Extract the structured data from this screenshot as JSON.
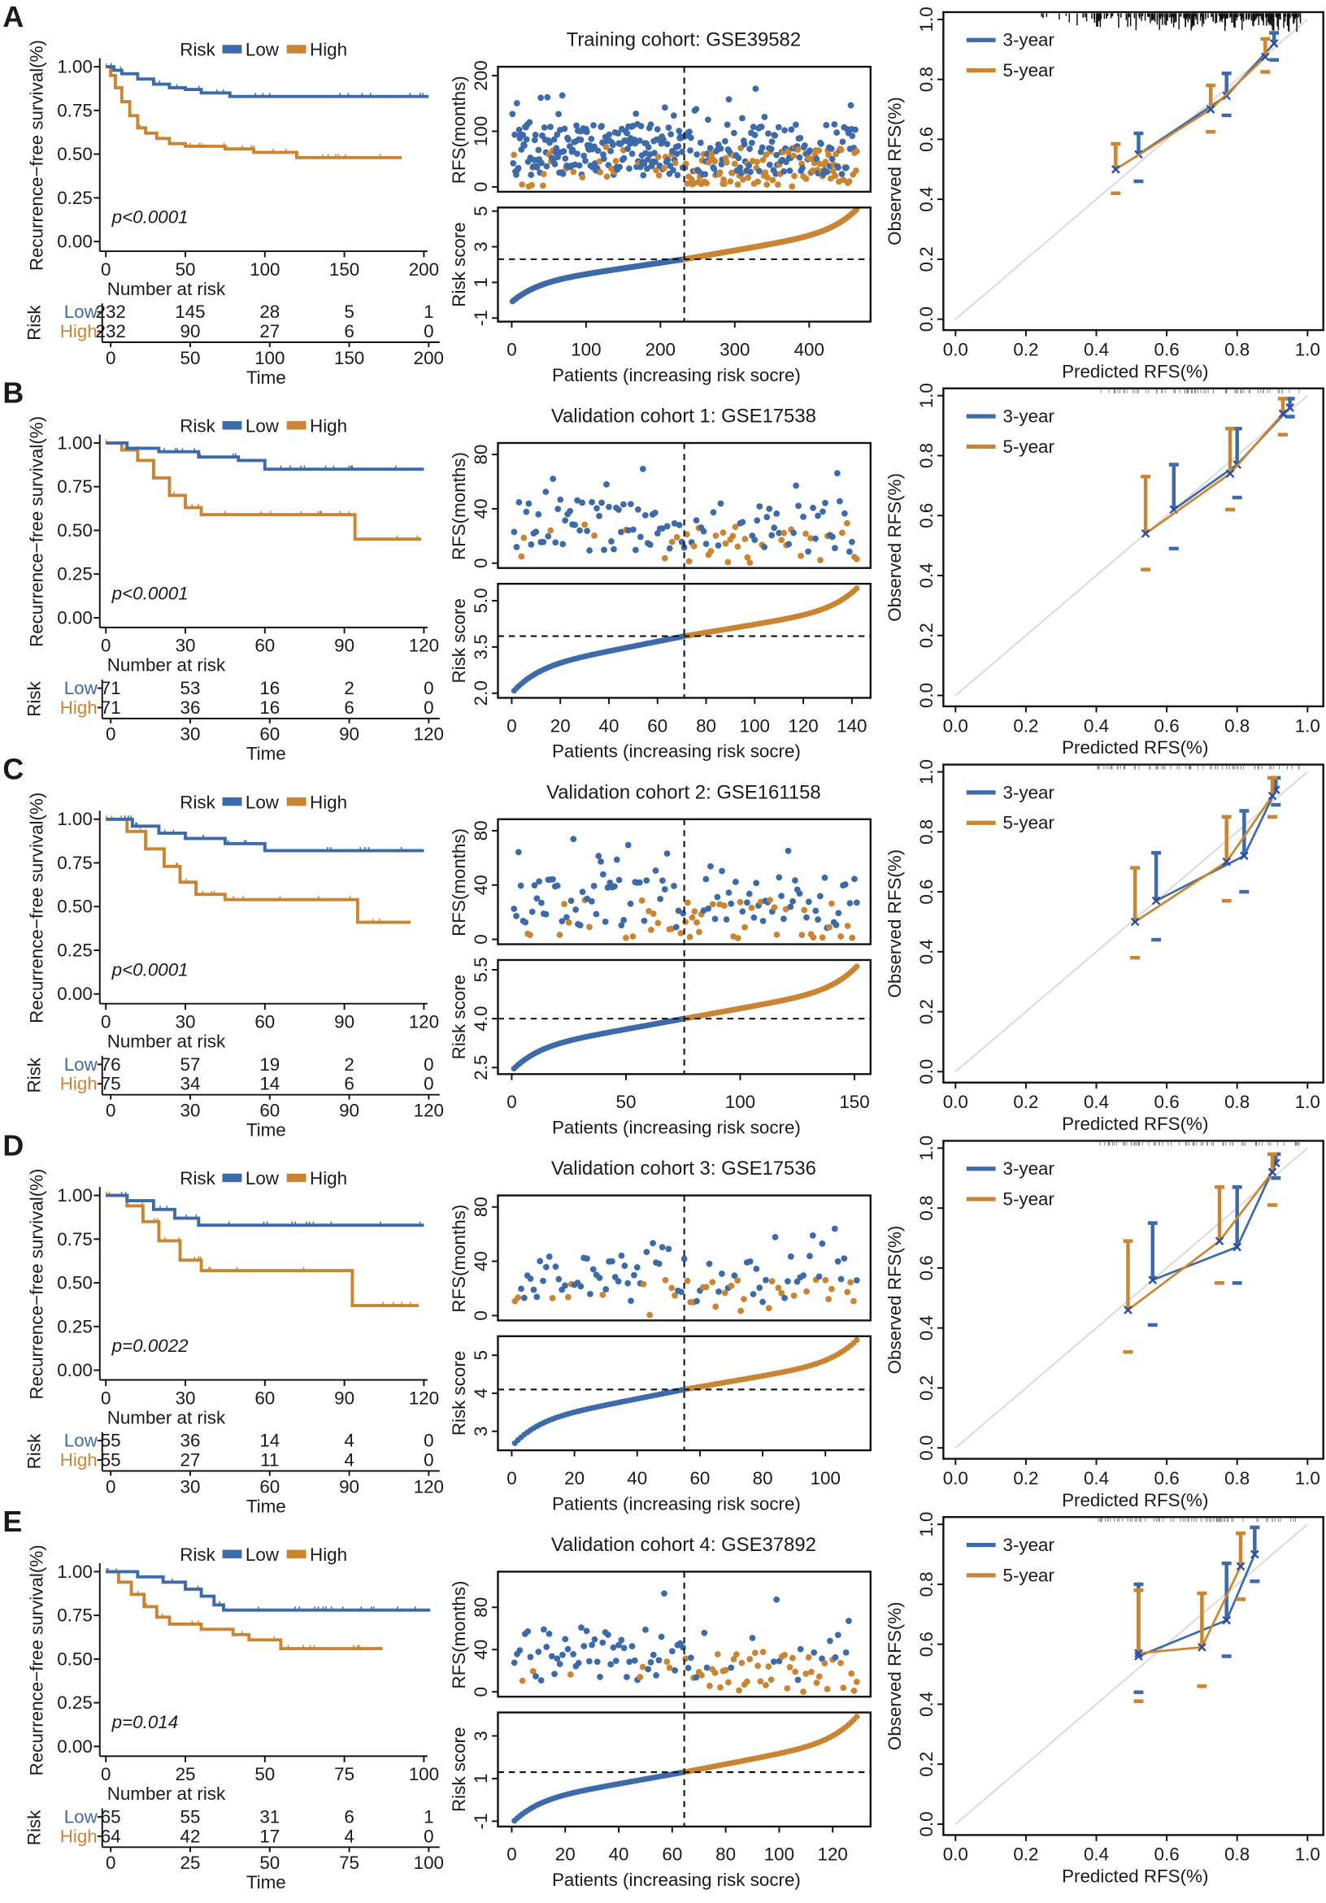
{
  "colors": {
    "low": "#3d6aa8",
    "high": "#c98532",
    "mark": "#2b4ea0",
    "ideal": "#d9d9d9"
  },
  "common": {
    "km_ylabel": "Recurrence−free survival(%)",
    "km_yticks": [
      "0.00",
      "0.25",
      "0.50",
      "0.75",
      "1.00"
    ],
    "legend_title": "Risk",
    "legend_low": "Low",
    "legend_high": "High",
    "risk_table_title": "Number at risk",
    "risk_table_ylabel": "Risk",
    "time_label": "Time",
    "rfs_ylabel": "RFS(months)",
    "score_ylabel": "Risk score",
    "patients_xlabel": "Patients (increasing risk socre)",
    "cal_xlabel": "Predicted RFS(%)",
    "cal_ylabel": "Observed RFS(%)",
    "cal_ticks": [
      "0.0",
      "0.2",
      "0.4",
      "0.6",
      "0.8",
      "1.0"
    ],
    "cal_legend": [
      "3-year",
      "5-year"
    ]
  },
  "chart_data": [
    {
      "panel": "A",
      "title": "Training cohort: GSE39582",
      "km": {
        "type": "line",
        "xmax": 200,
        "xticks": [
          0,
          50,
          100,
          150,
          200
        ],
        "p_value": "p<0.0001",
        "low": {
          "points": [
            [
              0,
              1
            ],
            [
              5,
              0.98
            ],
            [
              10,
              0.96
            ],
            [
              20,
              0.93
            ],
            [
              30,
              0.9
            ],
            [
              40,
              0.88
            ],
            [
              50,
              0.87
            ],
            [
              60,
              0.85
            ],
            [
              78,
              0.83
            ]
          ],
          "end": 203
        },
        "high": {
          "points": [
            [
              0,
              1
            ],
            [
              3,
              0.95
            ],
            [
              6,
              0.88
            ],
            [
              10,
              0.8
            ],
            [
              15,
              0.72
            ],
            [
              20,
              0.65
            ],
            [
              25,
              0.62
            ],
            [
              32,
              0.59
            ],
            [
              40,
              0.56
            ],
            [
              50,
              0.545
            ],
            [
              75,
              0.53
            ],
            [
              93,
              0.51
            ],
            [
              120,
              0.48
            ]
          ],
          "end": 186
        },
        "at_risk": {
          "low": [
            "232",
            "145",
            "28",
            "5",
            "1"
          ],
          "high": [
            "232",
            "90",
            "27",
            "6",
            "0"
          ]
        }
      },
      "risk": {
        "type": "scatter",
        "n": 464,
        "cutoff": 232,
        "xticks": [
          0,
          100,
          200,
          300,
          400
        ],
        "rfs_ylim": [
          0,
          205
        ],
        "rfs_yticks": [
          0,
          100,
          200
        ],
        "score_ylim": [
          -1.2,
          5.2
        ],
        "score_yticks": [
          -1,
          1,
          3,
          5
        ],
        "score_cut": 2.3,
        "score_range": [
          -0.1,
          5.1
        ]
      },
      "calibration": {
        "type": "line",
        "xlim": [
          0,
          1
        ],
        "ylim": [
          0,
          1
        ],
        "series": [
          {
            "name": "3-year",
            "points": [
              [
                0.52,
                0.55,
                0.46,
                0.62
              ],
              [
                0.77,
                0.745,
                0.68,
                0.82
              ],
              [
                0.905,
                0.92,
                0.865,
                0.955
              ]
            ]
          },
          {
            "name": "5-year",
            "points": [
              [
                0.455,
                0.5,
                0.42,
                0.585
              ],
              [
                0.725,
                0.7,
                0.625,
                0.78
              ],
              [
                0.88,
                0.875,
                0.825,
                0.935
              ]
            ]
          }
        ]
      }
    },
    {
      "panel": "B",
      "title": "Validation cohort 1: GSE17538",
      "km": {
        "type": "line",
        "xmax": 120,
        "xticks": [
          0,
          30,
          60,
          90,
          120
        ],
        "p_value": "p<0.0001",
        "low": {
          "points": [
            [
              0,
              1
            ],
            [
              8,
              0.97
            ],
            [
              20,
              0.95
            ],
            [
              35,
              0.92
            ],
            [
              50,
              0.9
            ],
            [
              60,
              0.85
            ]
          ],
          "end": 120
        },
        "high": {
          "points": [
            [
              0,
              1
            ],
            [
              6,
              0.96
            ],
            [
              12,
              0.9
            ],
            [
              18,
              0.8
            ],
            [
              24,
              0.7
            ],
            [
              30,
              0.63
            ],
            [
              36,
              0.59
            ],
            [
              94,
              0.45
            ]
          ],
          "end": 119
        },
        "at_risk": {
          "low": [
            "71",
            "53",
            "16",
            "2",
            "0"
          ],
          "high": [
            "71",
            "36",
            "16",
            "6",
            "0"
          ]
        }
      },
      "risk": {
        "type": "scatter",
        "n": 142,
        "cutoff": 71,
        "xticks": [
          0,
          20,
          40,
          60,
          80,
          100,
          120,
          140
        ],
        "rfs_ylim": [
          0,
          84
        ],
        "rfs_yticks": [
          0,
          40,
          80
        ],
        "score_ylim": [
          1.85,
          5.55
        ],
        "score_yticks": [
          2.0,
          3.5,
          5.0
        ],
        "score_cut": 3.85,
        "score_range": [
          2.0,
          5.4
        ]
      },
      "calibration": {
        "type": "line",
        "xlim": [
          0,
          1
        ],
        "ylim": [
          0,
          1
        ],
        "series": [
          {
            "name": "3-year",
            "points": [
              [
                0.62,
                0.62,
                0.49,
                0.77
              ],
              [
                0.8,
                0.77,
                0.66,
                0.89
              ],
              [
                0.95,
                0.96,
                0.93,
                0.99
              ]
            ]
          },
          {
            "name": "5-year",
            "points": [
              [
                0.54,
                0.54,
                0.42,
                0.73
              ],
              [
                0.78,
                0.74,
                0.62,
                0.89
              ],
              [
                0.93,
                0.94,
                0.87,
                0.99
              ]
            ]
          }
        ]
      }
    },
    {
      "panel": "C",
      "title": "Validation cohort 2: GSE161158",
      "km": {
        "type": "line",
        "xmax": 120,
        "xticks": [
          0,
          30,
          60,
          90,
          120
        ],
        "p_value": "p<0.0001",
        "low": {
          "points": [
            [
              0,
              1
            ],
            [
              10,
              0.96
            ],
            [
              20,
              0.92
            ],
            [
              30,
              0.89
            ],
            [
              45,
              0.86
            ],
            [
              60,
              0.82
            ]
          ],
          "end": 120
        },
        "high": {
          "points": [
            [
              0,
              1
            ],
            [
              8,
              0.93
            ],
            [
              15,
              0.83
            ],
            [
              22,
              0.73
            ],
            [
              28,
              0.64
            ],
            [
              34,
              0.57
            ],
            [
              45,
              0.54
            ],
            [
              95,
              0.41
            ]
          ],
          "end": 115
        },
        "at_risk": {
          "low": [
            "76",
            "57",
            "19",
            "2",
            "0"
          ],
          "high": [
            "75",
            "34",
            "14",
            "6",
            "0"
          ]
        }
      },
      "risk": {
        "type": "scatter",
        "n": 151,
        "cutoff": 75.5,
        "xticks": [
          0,
          50,
          100,
          150
        ],
        "rfs_ylim": [
          0,
          84
        ],
        "rfs_yticks": [
          0,
          40,
          80
        ],
        "score_ylim": [
          2.3,
          5.8
        ],
        "score_yticks": [
          2.5,
          4.0,
          5.5
        ],
        "score_cut": 4.0,
        "score_range": [
          2.4,
          5.6
        ]
      },
      "calibration": {
        "type": "line",
        "xlim": [
          0,
          1
        ],
        "ylim": [
          0,
          1
        ],
        "series": [
          {
            "name": "3-year",
            "points": [
              [
                0.57,
                0.57,
                0.44,
                0.73
              ],
              [
                0.82,
                0.72,
                0.6,
                0.87
              ],
              [
                0.91,
                0.94,
                0.89,
                0.98
              ]
            ]
          },
          {
            "name": "5-year",
            "points": [
              [
                0.51,
                0.5,
                0.38,
                0.68
              ],
              [
                0.77,
                0.7,
                0.57,
                0.85
              ],
              [
                0.9,
                0.92,
                0.85,
                0.98
              ]
            ]
          }
        ]
      }
    },
    {
      "panel": "D",
      "title": "Validation cohort 3: GSE17536",
      "km": {
        "type": "line",
        "xmax": 120,
        "xticks": [
          0,
          30,
          60,
          90,
          120
        ],
        "p_value": "p=0.0022",
        "low": {
          "points": [
            [
              0,
              1
            ],
            [
              8,
              0.97
            ],
            [
              18,
              0.92
            ],
            [
              26,
              0.87
            ],
            [
              35,
              0.83
            ]
          ],
          "end": 120
        },
        "high": {
          "points": [
            [
              0,
              1
            ],
            [
              8,
              0.94
            ],
            [
              14,
              0.85
            ],
            [
              20,
              0.74
            ],
            [
              28,
              0.63
            ],
            [
              36,
              0.57
            ],
            [
              93,
              0.37
            ]
          ],
          "end": 118
        },
        "at_risk": {
          "low": [
            "55",
            "36",
            "14",
            "4",
            "0"
          ],
          "high": [
            "55",
            "27",
            "11",
            "4",
            "0"
          ]
        }
      },
      "risk": {
        "type": "scatter",
        "n": 110,
        "cutoff": 55,
        "xticks": [
          0,
          20,
          40,
          60,
          80,
          100
        ],
        "rfs_ylim": [
          0,
          84
        ],
        "rfs_yticks": [
          0,
          40,
          80
        ],
        "score_ylim": [
          2.5,
          5.5
        ],
        "score_yticks": [
          3.0,
          4.0,
          5.0
        ],
        "score_cut": 4.1,
        "score_range": [
          2.6,
          5.4
        ]
      },
      "calibration": {
        "type": "line",
        "xlim": [
          0,
          1
        ],
        "ylim": [
          0,
          1
        ],
        "series": [
          {
            "name": "3-year",
            "points": [
              [
                0.56,
                0.56,
                0.41,
                0.75
              ],
              [
                0.8,
                0.67,
                0.55,
                0.87
              ],
              [
                0.91,
                0.95,
                0.9,
                0.98
              ]
            ]
          },
          {
            "name": "5-year",
            "points": [
              [
                0.49,
                0.46,
                0.32,
                0.69
              ],
              [
                0.75,
                0.69,
                0.55,
                0.87
              ],
              [
                0.9,
                0.92,
                0.81,
                0.98
              ]
            ]
          }
        ]
      }
    },
    {
      "panel": "E",
      "title": "Validation cohort 4: GSE37892",
      "km": {
        "type": "line",
        "xmax": 100,
        "xticks": [
          0,
          25,
          50,
          75,
          100
        ],
        "p_value": "p=0.014",
        "low": {
          "points": [
            [
              0,
              1
            ],
            [
              10,
              0.97
            ],
            [
              18,
              0.94
            ],
            [
              25,
              0.9
            ],
            [
              30,
              0.86
            ],
            [
              34,
              0.81
            ],
            [
              37,
              0.78
            ]
          ],
          "end": 102
        },
        "high": {
          "points": [
            [
              0,
              1
            ],
            [
              4,
              0.94
            ],
            [
              8,
              0.87
            ],
            [
              12,
              0.8
            ],
            [
              16,
              0.74
            ],
            [
              20,
              0.7
            ],
            [
              30,
              0.67
            ],
            [
              40,
              0.64
            ],
            [
              45,
              0.61
            ],
            [
              55,
              0.56
            ]
          ],
          "end": 87
        },
        "at_risk": {
          "low": [
            "65",
            "55",
            "31",
            "6",
            "1"
          ],
          "high": [
            "64",
            "42",
            "17",
            "4",
            "0"
          ]
        }
      },
      "risk": {
        "type": "scatter",
        "n": 129,
        "cutoff": 64.5,
        "xticks": [
          0,
          20,
          40,
          60,
          80,
          100,
          120
        ],
        "rfs_ylim": [
          0,
          108
        ],
        "rfs_yticks": [
          0,
          40,
          80
        ],
        "score_ylim": [
          -1.25,
          4.1
        ],
        "score_yticks": [
          -1,
          1,
          3
        ],
        "score_cut": 1.3,
        "score_range": [
          -1.1,
          3.9
        ]
      },
      "calibration": {
        "type": "line",
        "xlim": [
          0,
          1
        ],
        "ylim": [
          0,
          1
        ],
        "series": [
          {
            "name": "3-year",
            "points": [
              [
                0.52,
                0.56,
                0.44,
                0.8
              ],
              [
                0.77,
                0.68,
                0.56,
                0.87
              ],
              [
                0.85,
                0.9,
                0.81,
                0.99
              ]
            ]
          },
          {
            "name": "5-year",
            "points": [
              [
                0.52,
                0.57,
                0.41,
                0.78
              ],
              [
                0.7,
                0.59,
                0.46,
                0.77
              ],
              [
                0.81,
                0.86,
                0.75,
                0.97
              ]
            ]
          }
        ]
      }
    }
  ]
}
